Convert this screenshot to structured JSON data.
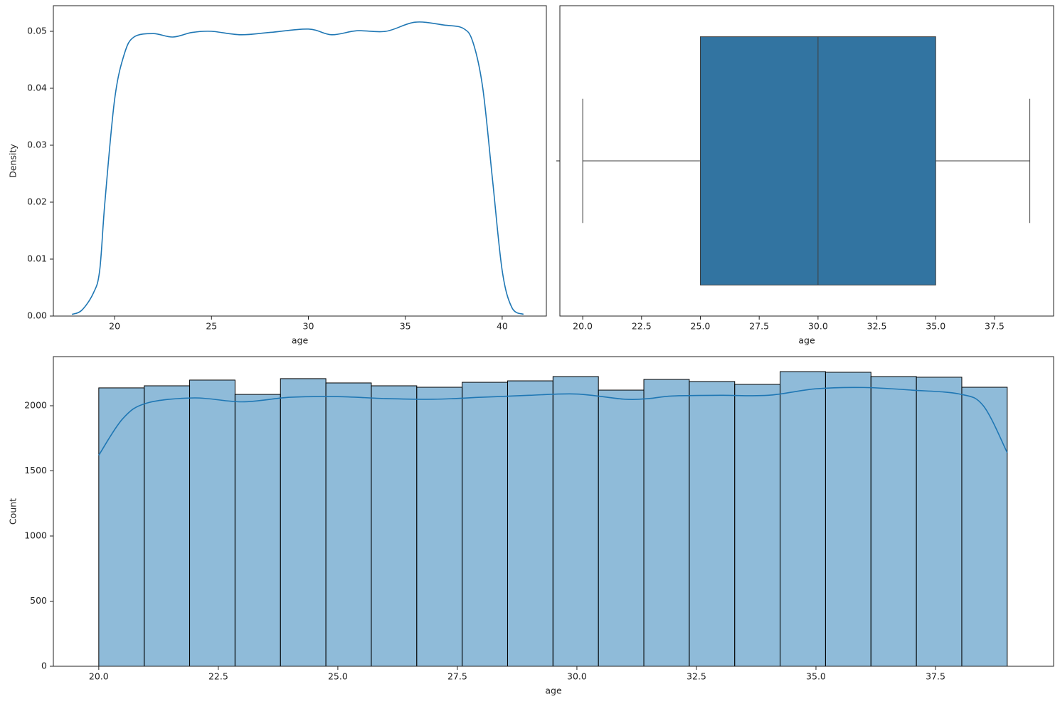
{
  "chart_data": [
    {
      "type": "line",
      "xlabel": "age",
      "ylabel": "Density",
      "color": "#1f77b4",
      "x": [
        17.8,
        18.3,
        18.9,
        19.23,
        19.5,
        20.0,
        20.5,
        21,
        22,
        23,
        24,
        25,
        26.5,
        28,
        30,
        31.2,
        32.5,
        34,
        35.5,
        37,
        38,
        38.5,
        39,
        39.5,
        40,
        40.5,
        41.1
      ],
      "values": [
        0.0003,
        0.001,
        0.004,
        0.008,
        0.02,
        0.038,
        0.046,
        0.049,
        0.0496,
        0.049,
        0.0498,
        0.05,
        0.0494,
        0.0498,
        0.0504,
        0.0494,
        0.0501,
        0.05,
        0.0516,
        0.0511,
        0.0505,
        0.048,
        0.04,
        0.024,
        0.008,
        0.0015,
        0.0003
      ],
      "xlim": [
        16.84,
        42.28
      ],
      "ylim": [
        0,
        0.0545
      ],
      "xticks": [
        20,
        25,
        30,
        35,
        40
      ],
      "yticks": [
        {
          "value": 0,
          "label": "0.00"
        },
        {
          "value": 0.01,
          "label": "0.01"
        },
        {
          "value": 0.02,
          "label": "0.02"
        },
        {
          "value": 0.03,
          "label": "0.03"
        },
        {
          "value": 0.04,
          "label": "0.04"
        },
        {
          "value": 0.05,
          "label": "0.05"
        }
      ]
    },
    {
      "type": "box",
      "xlabel": "age",
      "color": "#3274a1",
      "stats": {
        "whislo": 20,
        "q1": 25,
        "med": 30,
        "q3": 35,
        "whishi": 39
      },
      "xlim": [
        19.03,
        40.01
      ],
      "xticks": [
        {
          "value": 20,
          "label": "20.0"
        },
        {
          "value": 22.5,
          "label": "22.5"
        },
        {
          "value": 25,
          "label": "25.0"
        },
        {
          "value": 27.5,
          "label": "27.5"
        },
        {
          "value": 30,
          "label": "30.0"
        },
        {
          "value": 32.5,
          "label": "32.5"
        },
        {
          "value": 35,
          "label": "35.0"
        },
        {
          "value": 37.5,
          "label": "37.5"
        }
      ]
    },
    {
      "type": "histogram",
      "xlabel": "age",
      "ylabel": "Count",
      "color": "#1f77b4",
      "bins": [
        20,
        20.95,
        21.9,
        22.85,
        23.8,
        24.75,
        25.7,
        26.65,
        27.6,
        28.55,
        29.5,
        30.45,
        31.4,
        32.35,
        33.3,
        34.25,
        35.2,
        36.15,
        37.1,
        38.05,
        39
      ],
      "values": [
        2137,
        2153,
        2197,
        2087,
        2208,
        2175,
        2153,
        2142,
        2180,
        2191,
        2224,
        2120,
        2202,
        2186,
        2164,
        2262,
        2257,
        2224,
        2219,
        2142
      ],
      "kde": {
        "x": [
          20,
          20.5,
          21,
          22,
          23,
          24,
          25,
          26,
          27,
          28,
          29,
          30,
          31,
          31.5,
          32,
          33,
          34,
          35,
          36,
          37,
          38,
          38.5,
          39
        ],
        "values": [
          1620,
          1900,
          2020,
          2060,
          2030,
          2065,
          2070,
          2055,
          2050,
          2065,
          2080,
          2090,
          2050,
          2055,
          2075,
          2080,
          2080,
          2130,
          2140,
          2120,
          2090,
          2000,
          1640
        ]
      },
      "xlim": [
        19.05,
        39.97
      ],
      "ylim": [
        0,
        2377
      ],
      "xticks": [
        {
          "value": 20,
          "label": "20.0"
        },
        {
          "value": 22.5,
          "label": "22.5"
        },
        {
          "value": 25,
          "label": "25.0"
        },
        {
          "value": 27.5,
          "label": "27.5"
        },
        {
          "value": 30,
          "label": "30.0"
        },
        {
          "value": 32.5,
          "label": "32.5"
        },
        {
          "value": 35,
          "label": "35.0"
        },
        {
          "value": 37.5,
          "label": "37.5"
        }
      ],
      "yticks": [
        0,
        500,
        1000,
        1500,
        2000
      ]
    }
  ]
}
